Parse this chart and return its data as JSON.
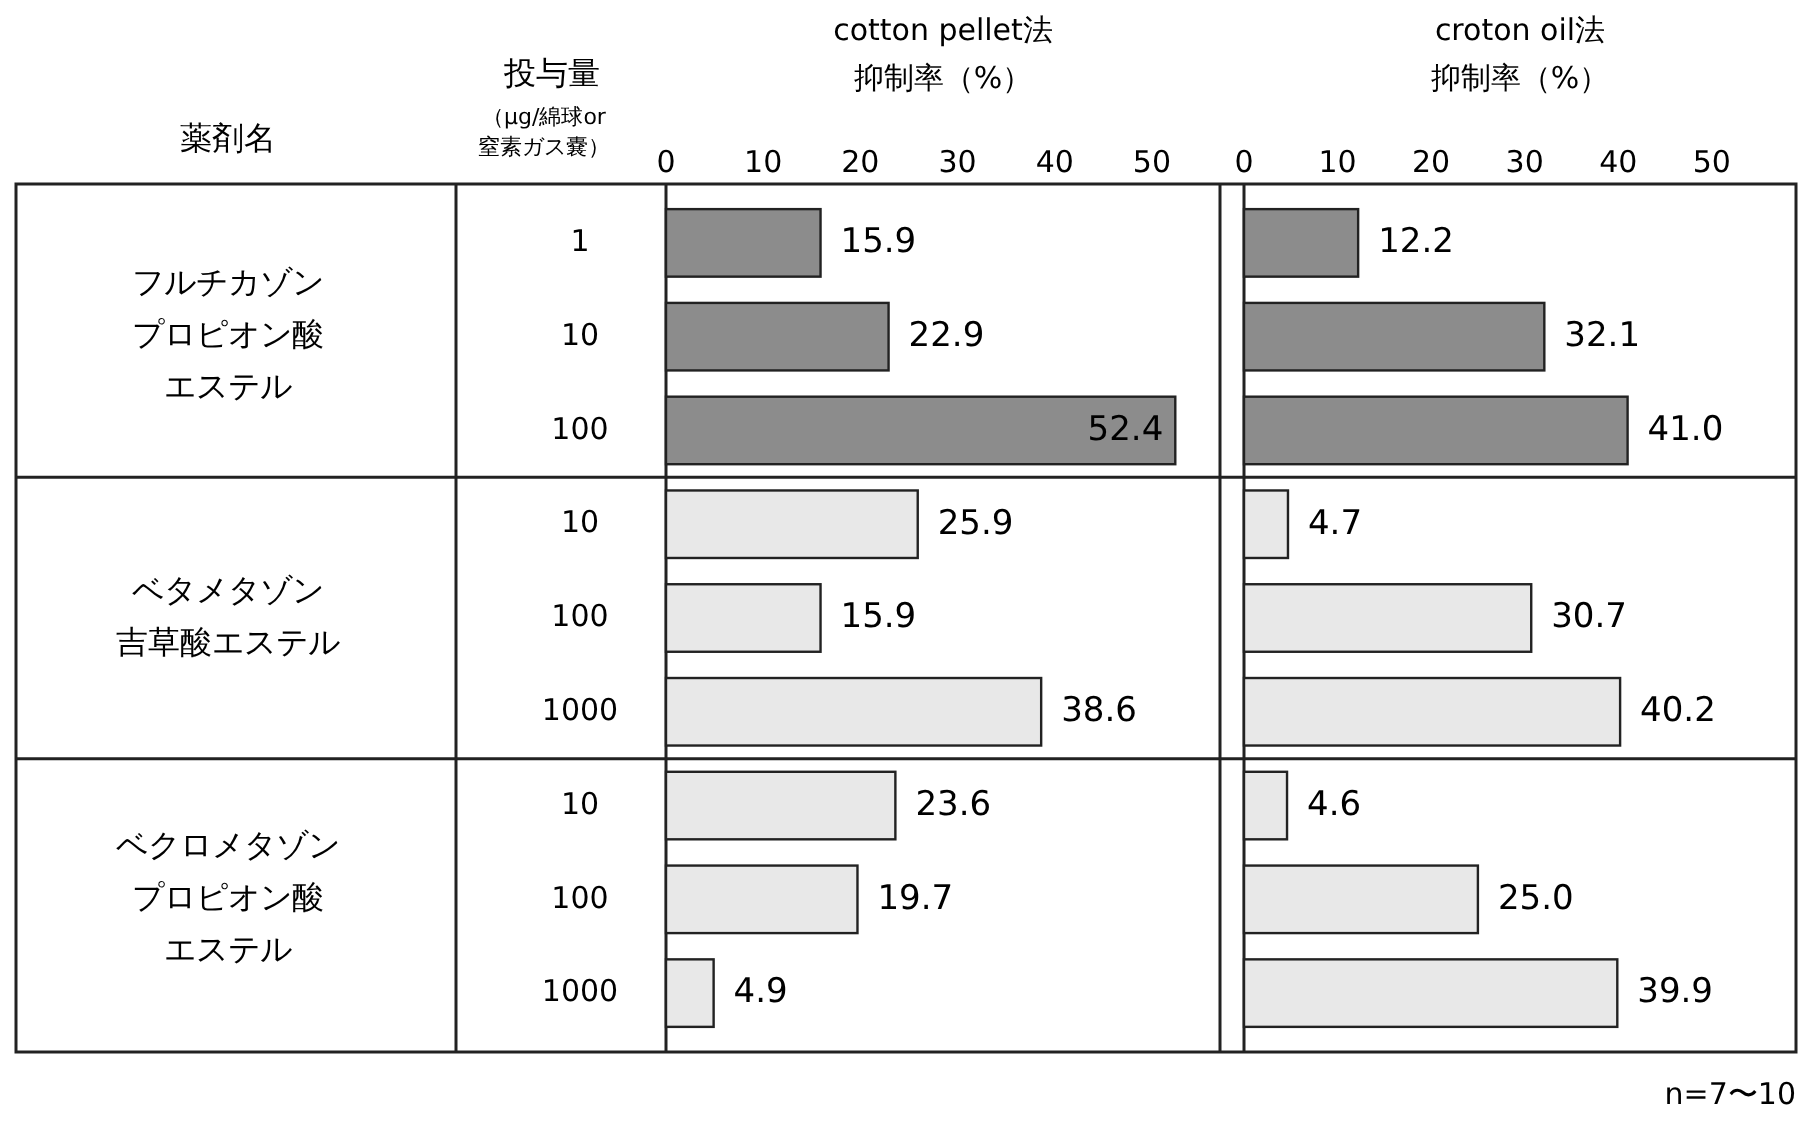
{
  "chart_data": [
    {
      "type": "bar",
      "orientation": "horizontal",
      "title": "cotton pellet法",
      "xlabel": "抑制率（%）",
      "categories": [
        "1",
        "10",
        "100",
        "10",
        "100",
        "1000",
        "10",
        "100",
        "1000"
      ],
      "values": [
        15.9,
        22.9,
        52.4,
        25.9,
        15.9,
        38.6,
        23.6,
        19.7,
        4.9
      ],
      "value_labels": [
        "15.9",
        "22.9",
        "52.4",
        "25.9",
        "15.9",
        "38.6",
        "23.6",
        "19.7",
        "4.9"
      ],
      "colors": [
        "#8c8c8c",
        "#8c8c8c",
        "#8c8c8c",
        "#e8e8e8",
        "#e8e8e8",
        "#e8e8e8",
        "#e8e8e8",
        "#e8e8e8",
        "#e8e8e8"
      ],
      "xlim": [
        0,
        57
      ],
      "xticks": [
        0,
        10,
        20,
        30,
        40,
        50
      ],
      "annotations": [
        "薬剤名",
        "投与量",
        "（μg/綿球or",
        "窒素ガス嚢）",
        "フルチカゾン",
        "プロピオン酸",
        "エステル",
        "ベタメタゾン",
        "吉草酸エステル",
        "ベクロメタゾン",
        "プロピオン酸",
        "エステル"
      ]
    },
    {
      "type": "bar",
      "orientation": "horizontal",
      "title": "croton oil法",
      "xlabel": "抑制率（%）",
      "categories": [
        "1",
        "10",
        "100",
        "10",
        "100",
        "1000",
        "10",
        "100",
        "1000"
      ],
      "values": [
        12.2,
        32.1,
        41.0,
        4.7,
        30.7,
        40.2,
        4.6,
        25.0,
        39.9
      ],
      "value_labels": [
        "12.2",
        "32.1",
        "41.0",
        "4.7",
        "30.7",
        "40.2",
        "4.6",
        "25.0",
        "39.9"
      ],
      "colors": [
        "#8c8c8c",
        "#8c8c8c",
        "#8c8c8c",
        "#e8e8e8",
        "#e8e8e8",
        "#e8e8e8",
        "#e8e8e8",
        "#e8e8e8",
        "#e8e8e8"
      ],
      "xlim": [
        0,
        59
      ],
      "xticks": [
        0,
        10,
        20,
        30,
        40,
        50
      ],
      "tick_labels": "x",
      "annotations": [
        "n=7〜10"
      ]
    }
  ]
}
